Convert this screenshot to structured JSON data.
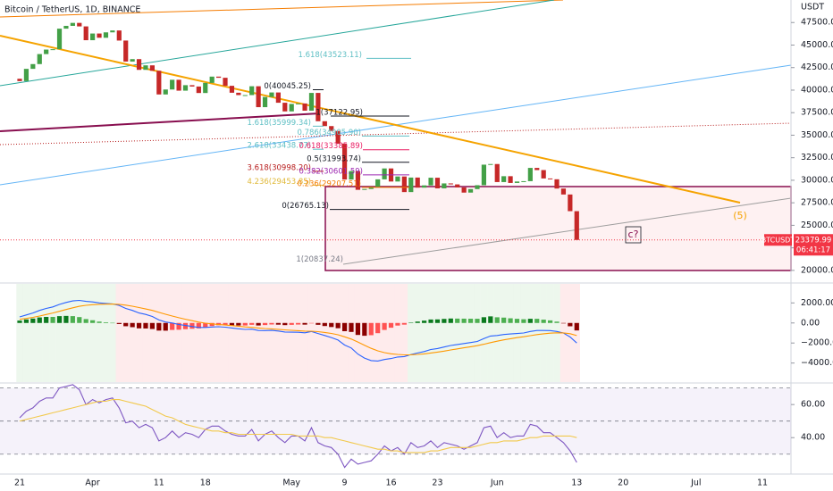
{
  "chart_data": [
    {
      "type": "candlestick",
      "title": "Bitcoin / TetherUS, 1D, BINANCE",
      "y_unit": "USDT",
      "categories": [
        "21",
        null,
        null,
        null,
        null,
        null,
        null,
        null,
        null,
        null,
        null,
        "Apr",
        null,
        null,
        null,
        null,
        null,
        null,
        null,
        null,
        null,
        "11",
        null,
        null,
        null,
        null,
        null,
        null,
        "18",
        null,
        null,
        null,
        null,
        null,
        null,
        null,
        null,
        null,
        null,
        null,
        null,
        "May",
        null,
        null,
        null,
        null,
        null,
        null,
        null,
        "9",
        null,
        null,
        null,
        null,
        null,
        null,
        "16",
        null,
        null,
        null,
        null,
        null,
        null,
        "23",
        null,
        null,
        null,
        null,
        null,
        null,
        null,
        null,
        "Jun",
        null,
        null,
        null,
        null,
        null,
        null,
        null,
        null,
        null,
        null,
        null,
        "13"
      ],
      "extra_xticks": [
        "20",
        "Jul",
        "11"
      ],
      "open": [
        41260,
        41000,
        42360,
        42890,
        44000,
        44500,
        44540,
        46820,
        47130,
        47460,
        47070,
        45540,
        46280,
        45810,
        46410,
        46620,
        45500,
        43170,
        43440,
        42250,
        42750,
        42150,
        39520,
        40070,
        41150,
        39940,
        40550,
        40400,
        39680,
        40800,
        41500,
        41370,
        40480,
        39710,
        39450,
        39450,
        40430,
        38110,
        39240,
        39740,
        38600,
        37640,
        38470,
        38520,
        37720,
        39690,
        36550,
        36010,
        35470,
        34060,
        30080,
        31020,
        28940,
        29030,
        29280,
        30100,
        31310,
        29860,
        30420,
        28690,
        30300,
        29180,
        29430,
        30280,
        29100,
        29650,
        29540,
        29200,
        28630,
        29020,
        29450,
        31730,
        31800,
        29800,
        30450,
        29700,
        29860,
        29900,
        31370,
        31130,
        30200,
        30110,
        29080,
        28420,
        26570
      ],
      "close": [
        41000,
        42360,
        42890,
        44000,
        44500,
        44540,
        46820,
        47130,
        47460,
        47070,
        45540,
        46280,
        45810,
        46410,
        46620,
        45500,
        43170,
        43440,
        42250,
        42750,
        42150,
        39520,
        40070,
        41150,
        39940,
        40550,
        40400,
        39680,
        40800,
        41500,
        41370,
        40480,
        39710,
        39450,
        39450,
        40430,
        38110,
        39240,
        39740,
        38600,
        37640,
        38470,
        38520,
        37720,
        39690,
        36550,
        36010,
        35470,
        34060,
        30080,
        31020,
        28940,
        29030,
        29280,
        30100,
        31310,
        29860,
        30420,
        28690,
        30300,
        29180,
        29430,
        30280,
        29100,
        29650,
        29540,
        29200,
        28630,
        29020,
        29450,
        31730,
        31800,
        29800,
        30450,
        29700,
        29860,
        29900,
        31370,
        31130,
        30200,
        30110,
        29080,
        28420,
        26570,
        23379.99
      ],
      "up_color": "#43a047",
      "down_color": "#c62828",
      "ylim": [
        18700,
        50000
      ],
      "yticks": [
        {
          "value": 47500,
          "label": "47500.00"
        },
        {
          "value": 45000,
          "label": "45000.00"
        },
        {
          "value": 42500,
          "label": "42500.00"
        },
        {
          "value": 40000,
          "label": "40000.00"
        },
        {
          "value": 37500,
          "label": "37500.00"
        },
        {
          "value": 35000,
          "label": "35000.00"
        },
        {
          "value": 32500,
          "label": "32500.00"
        },
        {
          "value": 30000,
          "label": "30000.00"
        },
        {
          "value": 27500,
          "label": "27500.00"
        },
        {
          "value": 25000,
          "label": "25000.00"
        },
        {
          "value": 22500,
          "label": "22500.00"
        },
        {
          "value": 20000,
          "label": "20000.00"
        }
      ],
      "symbol": "BTCUSDT",
      "countdown": "06:41:17",
      "last_color": "#f23645",
      "annotations": [
        {
          "text": "1.618(43523.11)",
          "value": 43523.11,
          "color": "#5fbfc4"
        },
        {
          "text": "0(40045.25)",
          "value": 40045.25,
          "color": "#131722"
        },
        {
          "text": "1(37122.95)",
          "value": 37122.95,
          "color": "#131722"
        },
        {
          "text": "1.618(35999.34)",
          "value": 35999.34,
          "color": "#5fbfc4"
        },
        {
          "text": "0.786(34905.90)",
          "value": 34905.9,
          "color": "#5fbfc4"
        },
        {
          "text": "2.618(33438.77)",
          "value": 33438.77,
          "color": "#5fbfc4"
        },
        {
          "text": "0.618(33385.89)",
          "value": 33385.89,
          "color": "#e91e63"
        },
        {
          "text": "0.5(31993.74)",
          "value": 31993.74,
          "color": "#131722"
        },
        {
          "text": "3.618(30998.20)",
          "value": 30998.2,
          "color": "#b71c1c"
        },
        {
          "text": "0.382(30601.59)",
          "value": 30601.59,
          "color": "#9c27b0"
        },
        {
          "text": "4.236(29453.85)",
          "value": 29453.85,
          "color": "#e0b93a"
        },
        {
          "text": "0.236(29207.51)",
          "value": 29207.51,
          "color": "#f57c00"
        },
        {
          "text": "0(26765.13)",
          "value": 26765.13,
          "color": "#131722"
        },
        {
          "text": "1(20837.24)",
          "value": 20837.24,
          "color": "#787b86"
        }
      ],
      "wave_labels": [
        {
          "text": "(5)",
          "color": "#f5a300"
        },
        {
          "text": "c?",
          "color": "#880e4f"
        }
      ]
    },
    {
      "type": "macd",
      "series": [
        {
          "color": "#2962ff",
          "values": [
            600,
            800,
            1000,
            1250,
            1450,
            1600,
            1850,
            2050,
            2200,
            2250,
            2150,
            2100,
            2000,
            1950,
            1900,
            1750,
            1450,
            1250,
            1000,
            850,
            650,
            300,
            100,
            0,
            -150,
            -250,
            -350,
            -450,
            -450,
            -400,
            -380,
            -420,
            -500,
            -580,
            -640,
            -620,
            -750,
            -760,
            -740,
            -800,
            -900,
            -920,
            -930,
            -980,
            -850,
            -1050,
            -1250,
            -1450,
            -1700,
            -2200,
            -2500,
            -3100,
            -3500,
            -3750,
            -3800,
            -3650,
            -3550,
            -3400,
            -3350,
            -3150,
            -3000,
            -2850,
            -2650,
            -2550,
            -2400,
            -2250,
            -2150,
            -2050,
            -1950,
            -1850,
            -1550,
            -1300,
            -1250,
            -1150,
            -1100,
            -1050,
            -1000,
            -850,
            -750,
            -750,
            -760,
            -850,
            -1000,
            -1400,
            -2000
          ]
        },
        {
          "color": "#ff9800",
          "values": [
            360,
            448,
            558,
            697,
            847,
            998,
            1168,
            1345,
            1516,
            1663,
            1760,
            1828,
            1863,
            1880,
            1884,
            1857,
            1776,
            1671,
            1537,
            1400,
            1250,
            1060,
            868,
            694,
            525,
            370,
            226,
            91,
            -17,
            -94,
            -151,
            -205,
            -264,
            -327,
            -390,
            -436,
            -499,
            -551,
            -589,
            -631,
            -685,
            -732,
            -772,
            -814,
            -821,
            -867,
            -944,
            -1045,
            -1176,
            -1381,
            -1605,
            -1904,
            -2223,
            -2528,
            -2782,
            -2956,
            -3075,
            -3140,
            -3182,
            -3176,
            -3141,
            -3083,
            -2996,
            -2907,
            -2806,
            -2695,
            -2586,
            -2479,
            -2373,
            -2268,
            -2124,
            -1959,
            -1817,
            -1684,
            -1567,
            -1464,
            -1371,
            -1267,
            -1164,
            -1081,
            -1017,
            -984,
            -987,
            -1070,
            -1256
          ]
        }
      ],
      "histogram": {
        "values": [
          240,
          352,
          442,
          553,
          603,
          602,
          682,
          705,
          684,
          587,
          390,
          272,
          137,
          70,
          16,
          -107,
          -326,
          -421,
          -537,
          -550,
          -600,
          -760,
          -768,
          -694,
          -675,
          -620,
          -576,
          -541,
          -433,
          -306,
          -229,
          -215,
          -236,
          -253,
          -250,
          -184,
          -251,
          -209,
          -151,
          -169,
          -215,
          -188,
          -158,
          -166,
          -29,
          -183,
          -306,
          -405,
          -524,
          -819,
          -895,
          -1196,
          -1277,
          -1222,
          -1018,
          -694,
          -475,
          -260,
          -168,
          26,
          141,
          233,
          346,
          357,
          406,
          445,
          436,
          429,
          423,
          418,
          574,
          659,
          567,
          534,
          467,
          414,
          371,
          417,
          414,
          331,
          257,
          134,
          -13,
          -330,
          -744
        ],
        "colors": {
          "pos_up": "#0b7a1e",
          "pos_down": "#4caf50",
          "neg_down": "#8b0000",
          "neg_up": "#ff5252"
        },
        "shade_colors": {
          "pos": "rgba(76,175,80,0.10)",
          "neg": "rgba(242,54,69,0.10)"
        }
      },
      "ylim": [
        -5900,
        3900
      ],
      "yticks": [
        {
          "value": 2000,
          "label": "2000.00"
        },
        {
          "value": 0,
          "label": "0.00"
        },
        {
          "value": -2000,
          "label": "−2000.00"
        },
        {
          "value": -4000,
          "label": "−4000.00"
        }
      ]
    },
    {
      "type": "rsi",
      "series": [
        {
          "color": "#7e57c2",
          "values": [
            52,
            56,
            58,
            62,
            64,
            64,
            70,
            71,
            72,
            69,
            60,
            63,
            61,
            63,
            64,
            58,
            49,
            50,
            46,
            48,
            46,
            38,
            40,
            44,
            40,
            43,
            42,
            40,
            45,
            47,
            47,
            44,
            42,
            41,
            41,
            45,
            38,
            42,
            44,
            40,
            37,
            41,
            41,
            38,
            46,
            37,
            35,
            34,
            30,
            22,
            27,
            24,
            25,
            26,
            30,
            35,
            32,
            34,
            30,
            37,
            34,
            35,
            38,
            34,
            37,
            36,
            35,
            33,
            35,
            37,
            46,
            47,
            40,
            43,
            40,
            41,
            41,
            48,
            47,
            43,
            43,
            40,
            37,
            32,
            25
          ]
        },
        {
          "color": "#f2c94c",
          "values": [
            50,
            51,
            52,
            53,
            54,
            55,
            56,
            57,
            58,
            59,
            60,
            61,
            62,
            62,
            63,
            63,
            62,
            61,
            60,
            59,
            57,
            55,
            53,
            52,
            50,
            48,
            47,
            46,
            45,
            44,
            44,
            43,
            43,
            42,
            42,
            42,
            42,
            42,
            42,
            42,
            42,
            42,
            41,
            41,
            41,
            41,
            40,
            40,
            39,
            38,
            37,
            36,
            35,
            34,
            33,
            33,
            32,
            32,
            31,
            31,
            31,
            31,
            32,
            32,
            33,
            34,
            34,
            34,
            34,
            35,
            36,
            37,
            37,
            38,
            38,
            38,
            39,
            40,
            40,
            41,
            41,
            41,
            41,
            41,
            40
          ]
        }
      ],
      "bands": [
        70,
        50,
        30
      ],
      "band_fill": "rgba(126,87,194,0.08)",
      "ylim": [
        18,
        72.5
      ],
      "yticks": [
        {
          "value": 60,
          "label": "60.00"
        },
        {
          "value": 40,
          "label": "40.00"
        }
      ]
    }
  ]
}
